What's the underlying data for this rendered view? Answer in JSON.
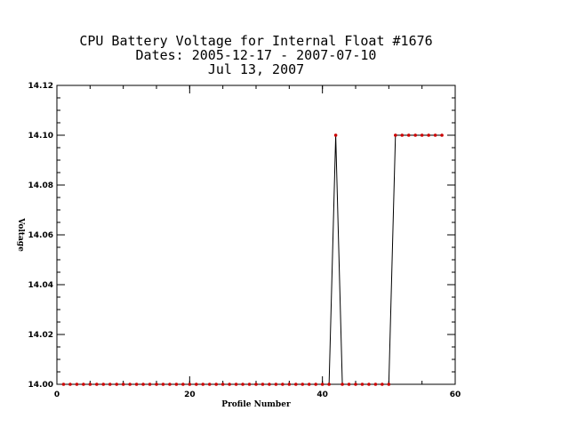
{
  "chart_data": {
    "type": "line",
    "title": [
      "CPU Battery Voltage for Internal Float #1676",
      "Dates:  2005-12-17 -  2007-07-10",
      "Jul 13, 2007"
    ],
    "xlabel": "Profile Number",
    "ylabel": "Voltage",
    "xlim": [
      0,
      60
    ],
    "ylim": [
      14.0,
      14.12
    ],
    "x_ticks": [
      0,
      20,
      40,
      60
    ],
    "y_ticks": [
      "14.00",
      "14.02",
      "14.04",
      "14.06",
      "14.08",
      "14.10",
      "14.12"
    ],
    "x_minor_step": 5,
    "y_minor_step": 0.005,
    "grid": false,
    "series": [
      {
        "color": "#cc0000",
        "line_color": "#000000",
        "x": [
          1,
          2,
          3,
          4,
          5,
          6,
          7,
          8,
          9,
          10,
          11,
          12,
          13,
          14,
          15,
          16,
          17,
          18,
          19,
          20,
          21,
          22,
          23,
          24,
          25,
          26,
          27,
          28,
          29,
          30,
          31,
          32,
          33,
          34,
          35,
          36,
          37,
          38,
          39,
          40,
          41,
          42,
          43,
          44,
          45,
          46,
          47,
          48,
          49,
          50,
          51,
          52,
          53,
          54,
          55,
          56,
          57,
          58
        ],
        "values": [
          14.0,
          14.0,
          14.0,
          14.0,
          14.0,
          14.0,
          14.0,
          14.0,
          14.0,
          14.0,
          14.0,
          14.0,
          14.0,
          14.0,
          14.0,
          14.0,
          14.0,
          14.0,
          14.0,
          14.0,
          14.0,
          14.0,
          14.0,
          14.0,
          14.0,
          14.0,
          14.0,
          14.0,
          14.0,
          14.0,
          14.0,
          14.0,
          14.0,
          14.0,
          14.0,
          14.0,
          14.0,
          14.0,
          14.0,
          14.0,
          14.0,
          14.1,
          14.0,
          14.0,
          14.0,
          14.0,
          14.0,
          14.0,
          14.0,
          14.0,
          14.1,
          14.1,
          14.1,
          14.1,
          14.1,
          14.1,
          14.1,
          14.1
        ]
      }
    ]
  }
}
